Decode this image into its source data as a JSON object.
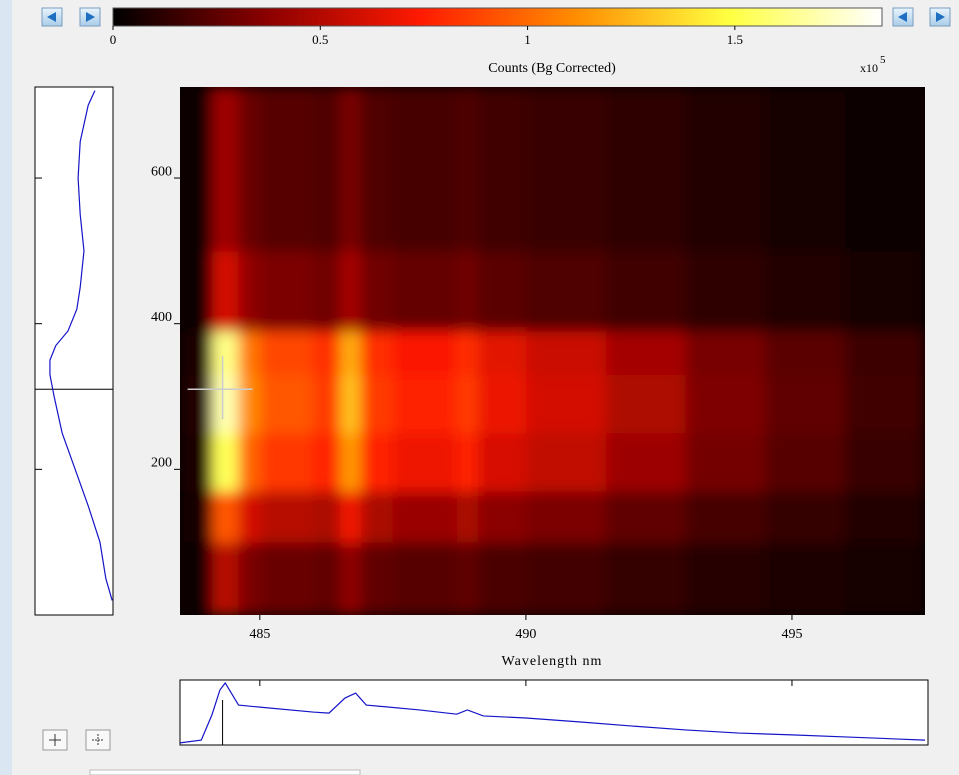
{
  "chart_data": {
    "type": "heatmap",
    "title": "Counts (Bg Corrected)",
    "colorbar_multiplier": "x10",
    "colorbar_exponent": "5",
    "x_label": "Wavelength nm",
    "xlim": [
      483.5,
      497.5
    ],
    "xticks": [
      485,
      490,
      495
    ],
    "ylim": [
      0,
      725
    ],
    "yticks": [
      200,
      400,
      600
    ],
    "zlim": [
      0,
      1.855
    ],
    "zticks": [
      0,
      0.5,
      1,
      1.5
    ],
    "colormap": [
      "#000000",
      "#8b0000",
      "#ff1a00",
      "#ff8c00",
      "#ffff40",
      "#ffffff"
    ],
    "x_edges": [
      483.5,
      484.1,
      484.6,
      485.0,
      486.0,
      486.5,
      486.9,
      487.5,
      488.7,
      489.1,
      490,
      491.5,
      493,
      494.5,
      496,
      497.5
    ],
    "y_edges": [
      0,
      100,
      170,
      250,
      330,
      390,
      500,
      725
    ],
    "z": [
      [
        0.03,
        0.51,
        0.33,
        0.28,
        0.26,
        0.38,
        0.26,
        0.23,
        0.26,
        0.2,
        0.18,
        0.14,
        0.1,
        0.08,
        0.05
      ],
      [
        0.05,
        0.94,
        0.61,
        0.51,
        0.47,
        0.7,
        0.47,
        0.42,
        0.47,
        0.37,
        0.33,
        0.26,
        0.19,
        0.14,
        0.09
      ],
      [
        0.08,
        1.53,
        0.99,
        0.84,
        0.77,
        1.15,
        0.77,
        0.69,
        0.77,
        0.61,
        0.54,
        0.43,
        0.31,
        0.23,
        0.15
      ],
      [
        0.09,
        1.7,
        1.11,
        0.94,
        0.85,
        1.28,
        0.85,
        0.77,
        0.85,
        0.68,
        0.6,
        0.48,
        0.34,
        0.26,
        0.17
      ],
      [
        0.08,
        1.62,
        1.05,
        0.89,
        0.81,
        1.21,
        0.81,
        0.73,
        0.81,
        0.65,
        0.57,
        0.45,
        0.32,
        0.24,
        0.16
      ],
      [
        0.03,
        0.6,
        0.39,
        0.33,
        0.3,
        0.45,
        0.3,
        0.27,
        0.3,
        0.24,
        0.21,
        0.17,
        0.12,
        0.09,
        0.06
      ],
      [
        0.02,
        0.43,
        0.28,
        0.23,
        0.21,
        0.32,
        0.21,
        0.19,
        0.21,
        0.17,
        0.15,
        0.12,
        0.09,
        0.06,
        0.04
      ]
    ],
    "cursor": {
      "x": 484.3,
      "y": 310
    },
    "profile_color": "#1414c8",
    "spectrum": {
      "x": [
        483.5,
        483.9,
        484.1,
        484.25,
        484.35,
        484.6,
        485,
        486,
        486.3,
        486.6,
        486.8,
        487.0,
        488,
        488.7,
        488.9,
        489.2,
        490,
        491,
        492,
        493,
        494,
        495,
        496,
        497,
        497.5
      ],
      "values": [
        0.06,
        0.14,
        0.86,
        1.57,
        1.77,
        1.14,
        1.08,
        0.94,
        0.91,
        1.34,
        1.48,
        1.14,
        1.0,
        0.88,
        1.0,
        0.83,
        0.77,
        0.66,
        0.54,
        0.43,
        0.34,
        0.29,
        0.23,
        0.17,
        0.14
      ]
    },
    "vertical_profile": {
      "y": [
        20,
        50,
        100,
        150,
        200,
        250,
        300,
        330,
        350,
        370,
        390,
        420,
        450,
        500,
        550,
        600,
        650,
        700,
        720
      ],
      "values": [
        0.02,
        0.17,
        0.31,
        0.59,
        0.9,
        1.21,
        1.4,
        1.5,
        1.5,
        1.36,
        1.07,
        0.86,
        0.78,
        0.69,
        0.78,
        0.83,
        0.78,
        0.59,
        0.43
      ]
    }
  }
}
